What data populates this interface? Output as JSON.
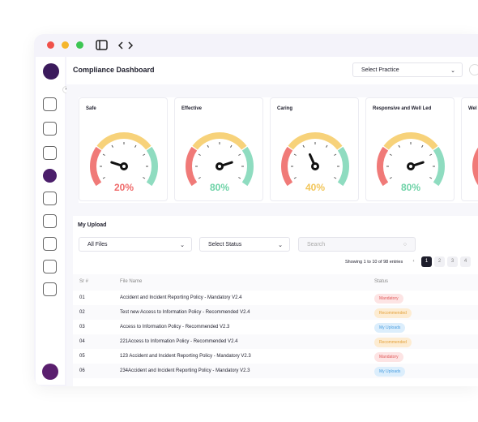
{
  "header": {
    "title": "Compliance Dashboard",
    "practice_select": "Select Practice"
  },
  "cards": [
    {
      "title": "Safe",
      "value": 20,
      "value_label": "20%",
      "color": "#ef6b6b"
    },
    {
      "title": "Effective",
      "value": 80,
      "value_label": "80%",
      "color": "#6fd3a8"
    },
    {
      "title": "Caring",
      "value": 40,
      "value_label": "40%",
      "color": "#f2c65a"
    },
    {
      "title": "Responsive and Well Led",
      "value": 80,
      "value_label": "80%",
      "color": "#6fd3a8"
    },
    {
      "title": "Wel",
      "value": null,
      "value_label": null,
      "color": "#6fd3a8"
    }
  ],
  "upload": {
    "title": "My Upload",
    "file_filter": "All Files",
    "status_filter": "Select Status",
    "search": "Search",
    "showing": "Showing 1 to 10 of 98 entries",
    "pages": [
      "1",
      "2",
      "3",
      "4"
    ],
    "columns": [
      "Sr #",
      "File Name",
      "Status"
    ],
    "rows": [
      [
        "01",
        "Accident and Incident Reporting Policy - Mandatory V2.4",
        "Mandatory",
        "#e05a5a",
        "#fde4e4"
      ],
      [
        "02",
        "Test new Access to Information Policy - Recommended V2.4",
        "Recommended",
        "#e3a13a",
        "#fdecd2"
      ],
      [
        "03",
        "Access to Information Policy - Recommended V2.3",
        "My Uploads",
        "#4a9ee0",
        "#dceefc"
      ],
      [
        "04",
        "221Access to Information Policy - Recommended V2.4",
        "Recommended",
        "#e3a13a",
        "#fdecd2"
      ],
      [
        "05",
        "123 Accident and Incident Reporting Policy - Mandatory V2.3",
        "Mandatory",
        "#e05a5a",
        "#fde4e4"
      ],
      [
        "06",
        "234Accident and Incident Reporting Policy - Mandatory V2.3",
        "My Uploads",
        "#4a9ee0",
        "#dceefc"
      ]
    ]
  }
}
